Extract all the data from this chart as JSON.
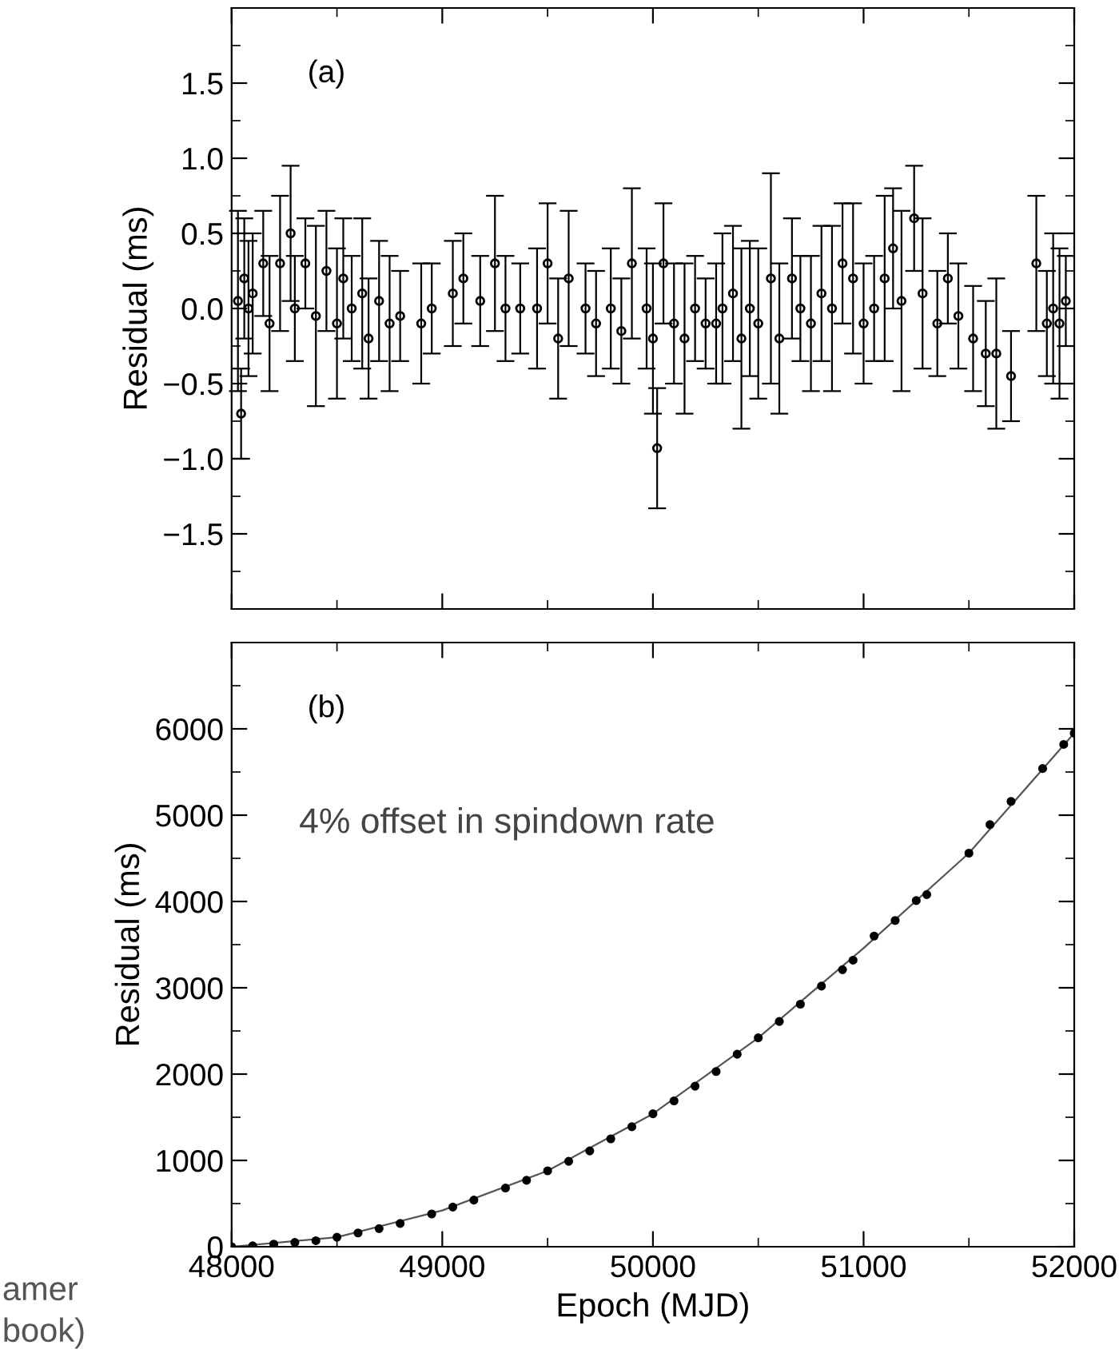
{
  "chart_data": [
    {
      "type": "scatter",
      "ylabel": "Residual (ms)",
      "annotations": [
        "(a)"
      ],
      "xlim": [
        48000,
        52000
      ],
      "xticks": [
        48000,
        {
          "value": 48500,
          "label": null
        },
        49000,
        {
          "value": 49500,
          "label": null
        },
        50000,
        {
          "value": 50500,
          "label": null
        },
        51000,
        {
          "value": 51500,
          "label": null
        },
        52000
      ],
      "ylim": [
        -2,
        2
      ],
      "yticks": [
        {
          "value": -1.75,
          "label": null
        },
        {
          "value": -1.5,
          "label": "−1.5"
        },
        {
          "value": -1.25,
          "label": null
        },
        {
          "value": -1.0,
          "label": "−1.0"
        },
        {
          "value": -0.75,
          "label": null
        },
        {
          "value": -0.5,
          "label": "−0.5"
        },
        {
          "value": -0.25,
          "label": null
        },
        {
          "value": 0,
          "label": "0.0"
        },
        {
          "value": 0.25,
          "label": null
        },
        {
          "value": 0.5,
          "label": "0.5"
        },
        {
          "value": 0.75,
          "label": null
        },
        {
          "value": 1.0,
          "label": "1.0"
        },
        {
          "value": 1.25,
          "label": null
        },
        {
          "value": 1.5,
          "label": "1.5"
        },
        {
          "value": 1.75,
          "label": null
        }
      ],
      "tick_labels": "y",
      "marker": "circle",
      "series": [
        {
          "color": "#000000",
          "x": [
            48030,
            48045,
            48060,
            48080,
            48100,
            48150,
            48180,
            48230,
            48280,
            48300,
            48350,
            48400,
            48450,
            48500,
            48530,
            48570,
            48620,
            48650,
            48700,
            48750,
            48800,
            48900,
            48950,
            49050,
            49100,
            49180,
            49250,
            49300,
            49370,
            49450,
            49500,
            49550,
            49600,
            49680,
            49730,
            49800,
            49850,
            49900,
            49970,
            50000,
            50020,
            50050,
            50100,
            50150,
            50200,
            50250,
            50300,
            50330,
            50380,
            50420,
            50460,
            50500,
            50560,
            50600,
            50660,
            50700,
            50750,
            50800,
            50850,
            50900,
            50950,
            51000,
            51050,
            51100,
            51140,
            51180,
            51240,
            51280,
            51350,
            51400,
            51450,
            51520,
            51580,
            51630,
            51700,
            51820,
            51870,
            51900,
            51930,
            51960
          ],
          "values": [
            0.05,
            -0.7,
            0.2,
            0.0,
            0.1,
            0.3,
            -0.1,
            0.3,
            0.5,
            0.0,
            0.3,
            -0.05,
            0.25,
            -0.1,
            0.2,
            0.0,
            0.1,
            -0.2,
            0.05,
            -0.1,
            -0.05,
            -0.1,
            0.0,
            0.1,
            0.2,
            0.05,
            0.3,
            0.0,
            0.0,
            0.0,
            0.3,
            -0.2,
            0.2,
            0.0,
            -0.1,
            0.0,
            -0.15,
            0.3,
            0.0,
            -0.2,
            -0.93,
            0.3,
            -0.1,
            -0.2,
            0.0,
            -0.1,
            -0.1,
            0.0,
            0.1,
            -0.2,
            0.0,
            -0.1,
            0.2,
            -0.2,
            0.2,
            0.0,
            -0.1,
            0.1,
            0.0,
            0.3,
            0.2,
            -0.1,
            0.0,
            0.2,
            0.4,
            0.05,
            0.6,
            0.1,
            -0.1,
            0.2,
            -0.05,
            -0.2,
            -0.3,
            -0.3,
            -0.45,
            0.3,
            -0.1,
            0.0,
            -0.1,
            0.05
          ],
          "errors": [
            0.6,
            0.3,
            0.4,
            0.45,
            0.4,
            0.35,
            0.45,
            0.45,
            0.45,
            0.35,
            0.3,
            0.6,
            0.4,
            0.5,
            0.4,
            0.35,
            0.5,
            0.4,
            0.4,
            0.45,
            0.3,
            0.4,
            0.3,
            0.35,
            0.3,
            0.3,
            0.45,
            0.35,
            0.3,
            0.4,
            0.4,
            0.4,
            0.45,
            0.3,
            0.35,
            0.4,
            0.35,
            0.5,
            0.4,
            0.5,
            0.4,
            0.4,
            0.4,
            0.5,
            0.35,
            0.3,
            0.4,
            0.5,
            0.45,
            0.6,
            0.45,
            0.5,
            0.7,
            0.5,
            0.4,
            0.35,
            0.45,
            0.45,
            0.55,
            0.4,
            0.5,
            0.4,
            0.35,
            0.55,
            0.4,
            0.6,
            0.35,
            0.5,
            0.35,
            0.3,
            0.35,
            0.35,
            0.35,
            0.5,
            0.3,
            0.45,
            0.35,
            0.5,
            0.5,
            0.3
          ]
        }
      ]
    },
    {
      "type": "scatter",
      "xlabel": "Epoch (MJD)",
      "ylabel": "Residual (ms)",
      "annotations": [
        "(b)",
        "4% offset in spindown rate",
        "amer",
        "book)"
      ],
      "xlim": [
        48000,
        52000
      ],
      "xticks": [
        48000,
        {
          "value": 48500,
          "label": null
        },
        49000,
        {
          "value": 49500,
          "label": null
        },
        50000,
        {
          "value": 50500,
          "label": null
        },
        51000,
        {
          "value": 51500,
          "label": null
        },
        52000
      ],
      "ylim": [
        0,
        7000
      ],
      "yticks": [
        0,
        {
          "value": 500,
          "label": null
        },
        1000,
        {
          "value": 1500,
          "label": null
        },
        2000,
        {
          "value": 2500,
          "label": null
        },
        3000,
        {
          "value": 3500,
          "label": null
        },
        4000,
        {
          "value": 4500,
          "label": null
        },
        5000,
        {
          "value": 5500,
          "label": null
        },
        6000,
        {
          "value": 6500,
          "label": null
        }
      ],
      "marker": "circle",
      "series": [
        {
          "type": "line",
          "marker": "none",
          "color": "#555555",
          "x": [
            48000,
            48500,
            49000,
            49500,
            50000,
            50500,
            51000,
            51500,
            52000
          ],
          "values": [
            0,
            110,
            420,
            880,
            1540,
            2420,
            3460,
            4560,
            5950
          ]
        },
        {
          "color": "#000000",
          "x": [
            48000,
            48100,
            48200,
            48300,
            48400,
            48500,
            48600,
            48700,
            48800,
            48950,
            49050,
            49150,
            49300,
            49400,
            49500,
            49600,
            49700,
            49800,
            49900,
            50000,
            50100,
            50200,
            50300,
            50400,
            50500,
            50600,
            50700,
            50800,
            50900,
            50950,
            51050,
            51150,
            51250,
            51300,
            51500,
            51600,
            51700,
            51850,
            51950,
            52000
          ],
          "values": [
            0,
            10,
            30,
            50,
            70,
            110,
            160,
            210,
            270,
            380,
            460,
            540,
            680,
            770,
            880,
            990,
            1110,
            1250,
            1390,
            1540,
            1690,
            1860,
            2030,
            2230,
            2420,
            2610,
            2810,
            3020,
            3210,
            3320,
            3600,
            3780,
            4010,
            4080,
            4560,
            4890,
            5160,
            5540,
            5820,
            5950
          ]
        }
      ]
    }
  ]
}
